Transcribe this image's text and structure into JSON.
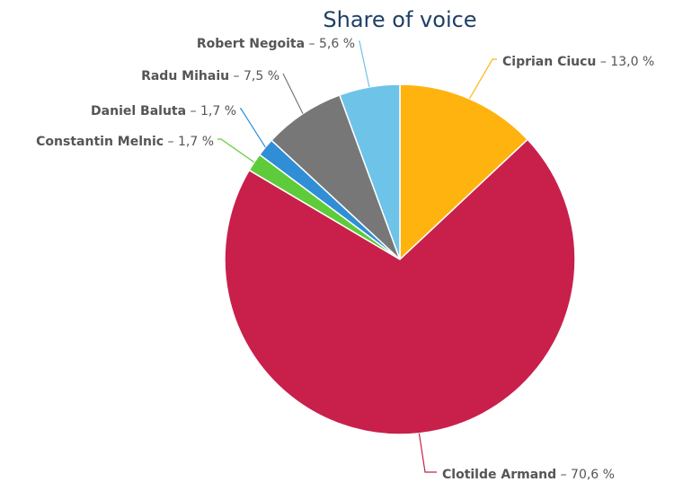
{
  "chart_data": {
    "type": "pie",
    "title": "Share of voice",
    "slices": [
      {
        "name": "Ciprian Ciucu",
        "value": 13.0,
        "display": "13,0 %",
        "color": "#FFB30F"
      },
      {
        "name": "Clotilde Armand",
        "value": 70.6,
        "display": "70,6 %",
        "color": "#C8204A"
      },
      {
        "name": "Constantin Melnic",
        "value": 1.7,
        "display": "1,7 %",
        "color": "#5ECB3A"
      },
      {
        "name": "Daniel Baluta",
        "value": 1.7,
        "display": "1,7 %",
        "color": "#2F8ED6"
      },
      {
        "name": "Radu Mihaiu",
        "value": 7.5,
        "display": "7,5 %",
        "color": "#777777"
      },
      {
        "name": "Robert Negoita",
        "value": 5.6,
        "display": "5,6 %",
        "color": "#6EC3E8"
      }
    ]
  }
}
